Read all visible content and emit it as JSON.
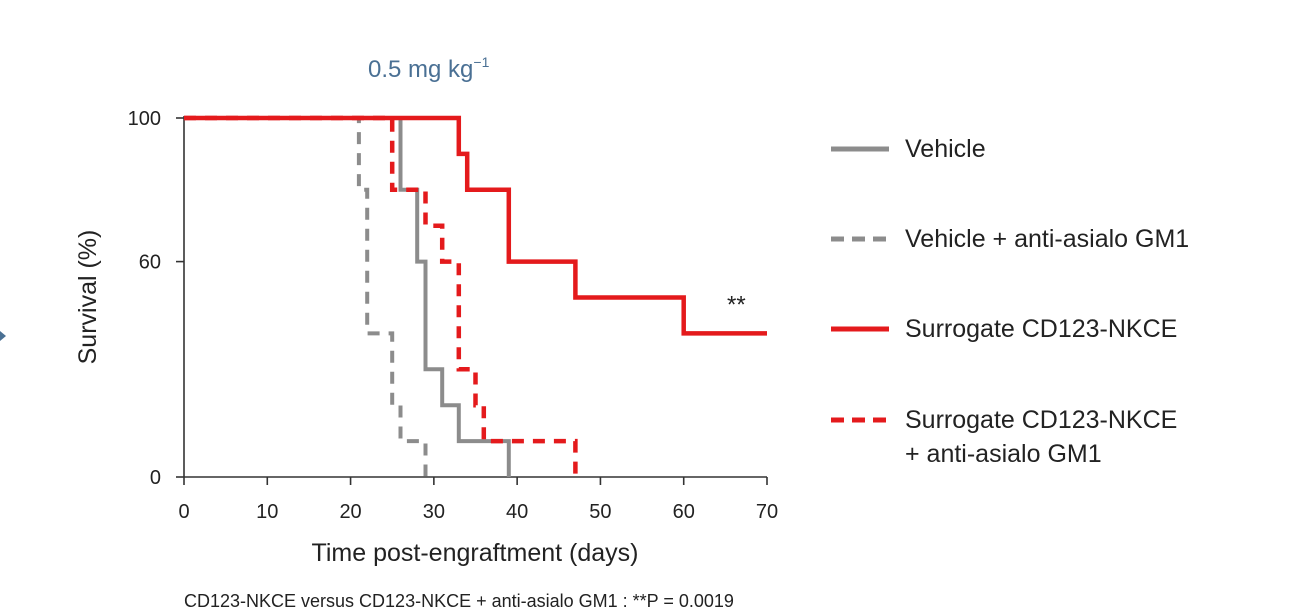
{
  "chart_data": {
    "type": "line",
    "title": "0.5 mg kg",
    "title_superscript": "−1",
    "xlabel": "Time post-engraftment (days)",
    "ylabel": "Survival (%)",
    "xlim": [
      0,
      70
    ],
    "ylim": [
      0,
      100
    ],
    "xticks": [
      0,
      10,
      20,
      30,
      40,
      50,
      60,
      70
    ],
    "yticks": [
      0,
      60,
      100
    ],
    "series": [
      {
        "name": "Vehicle",
        "name_lines": [
          "Vehicle"
        ],
        "color": "#8c8c8c",
        "style": "solid",
        "x": [
          0,
          26,
          26,
          28,
          28,
          29,
          29,
          31,
          31,
          33,
          33,
          39,
          39
        ],
        "y": [
          100,
          100,
          80,
          80,
          60,
          60,
          30,
          30,
          20,
          20,
          10,
          10,
          0
        ]
      },
      {
        "name": "Vehicle + anti-asialo GM1",
        "name_lines": [
          "Vehicle + anti-asialo GM1"
        ],
        "color": "#8c8c8c",
        "style": "dashed",
        "x": [
          0,
          21,
          21,
          22,
          22,
          25,
          25,
          26,
          26,
          29,
          29
        ],
        "y": [
          100,
          100,
          80,
          80,
          40,
          40,
          20,
          20,
          10,
          10,
          0
        ]
      },
      {
        "name": "Surrogate CD123-NKCE",
        "name_lines": [
          "Surrogate CD123-NKCE"
        ],
        "color": "#e41a1c",
        "style": "solid",
        "x": [
          0,
          33,
          33,
          34,
          34,
          39,
          39,
          47,
          47,
          60,
          60,
          70
        ],
        "y": [
          100,
          100,
          90,
          90,
          80,
          80,
          60,
          60,
          50,
          50,
          40,
          40
        ]
      },
      {
        "name": "Surrogate CD123-NKCE + anti-asialo GM1",
        "name_lines": [
          "Surrogate CD123-NKCE",
          "+ anti-asialo GM1"
        ],
        "color": "#e41a1c",
        "style": "dashed",
        "x": [
          0,
          25,
          25,
          29,
          29,
          31,
          31,
          33,
          33,
          35,
          35,
          36,
          36,
          47,
          47
        ],
        "y": [
          100,
          100,
          80,
          80,
          70,
          70,
          60,
          60,
          30,
          30,
          20,
          20,
          10,
          10,
          0
        ]
      }
    ],
    "annotations": [
      {
        "text": "**",
        "x": 68,
        "y": 45
      }
    ],
    "legend": "right",
    "footnote": "CD123-NKCE versus CD123-NKCE + anti-asialo GM1 : **P = 0.0019"
  }
}
